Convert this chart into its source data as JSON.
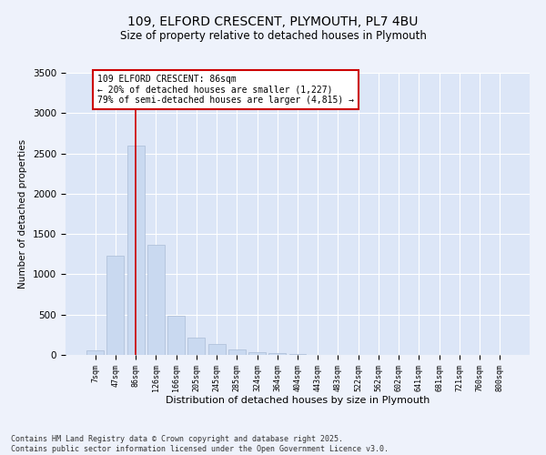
{
  "title_line1": "109, ELFORD CRESCENT, PLYMOUTH, PL7 4BU",
  "title_line2": "Size of property relative to detached houses in Plymouth",
  "xlabel": "Distribution of detached houses by size in Plymouth",
  "ylabel": "Number of detached properties",
  "categories": [
    "7sqm",
    "47sqm",
    "86sqm",
    "126sqm",
    "166sqm",
    "205sqm",
    "245sqm",
    "285sqm",
    "324sqm",
    "364sqm",
    "404sqm",
    "443sqm",
    "483sqm",
    "522sqm",
    "562sqm",
    "602sqm",
    "641sqm",
    "681sqm",
    "721sqm",
    "760sqm",
    "800sqm"
  ],
  "values": [
    60,
    1230,
    2600,
    1370,
    490,
    215,
    130,
    65,
    35,
    20,
    10,
    5,
    3,
    1,
    1,
    0,
    0,
    0,
    0,
    0,
    0
  ],
  "bar_color": "#c9d9f0",
  "bar_edge_color": "#aabcd5",
  "highlight_bar_index": 2,
  "annotation_text": "109 ELFORD CRESCENT: 86sqm\n← 20% of detached houses are smaller (1,227)\n79% of semi-detached houses are larger (4,815) →",
  "annotation_box_color": "#ffffff",
  "annotation_box_edge": "#cc0000",
  "annotation_text_size": 7,
  "vline_color": "#cc0000",
  "ylim": [
    0,
    3500
  ],
  "yticks": [
    0,
    500,
    1000,
    1500,
    2000,
    2500,
    3000,
    3500
  ],
  "background_color": "#eef2fb",
  "plot_bg_color": "#dce6f7",
  "grid_color": "#ffffff",
  "footer_line1": "Contains HM Land Registry data © Crown copyright and database right 2025.",
  "footer_line2": "Contains public sector information licensed under the Open Government Licence v3.0.",
  "footer_fontsize": 6,
  "title_fontsize1": 10,
  "title_fontsize2": 8.5
}
